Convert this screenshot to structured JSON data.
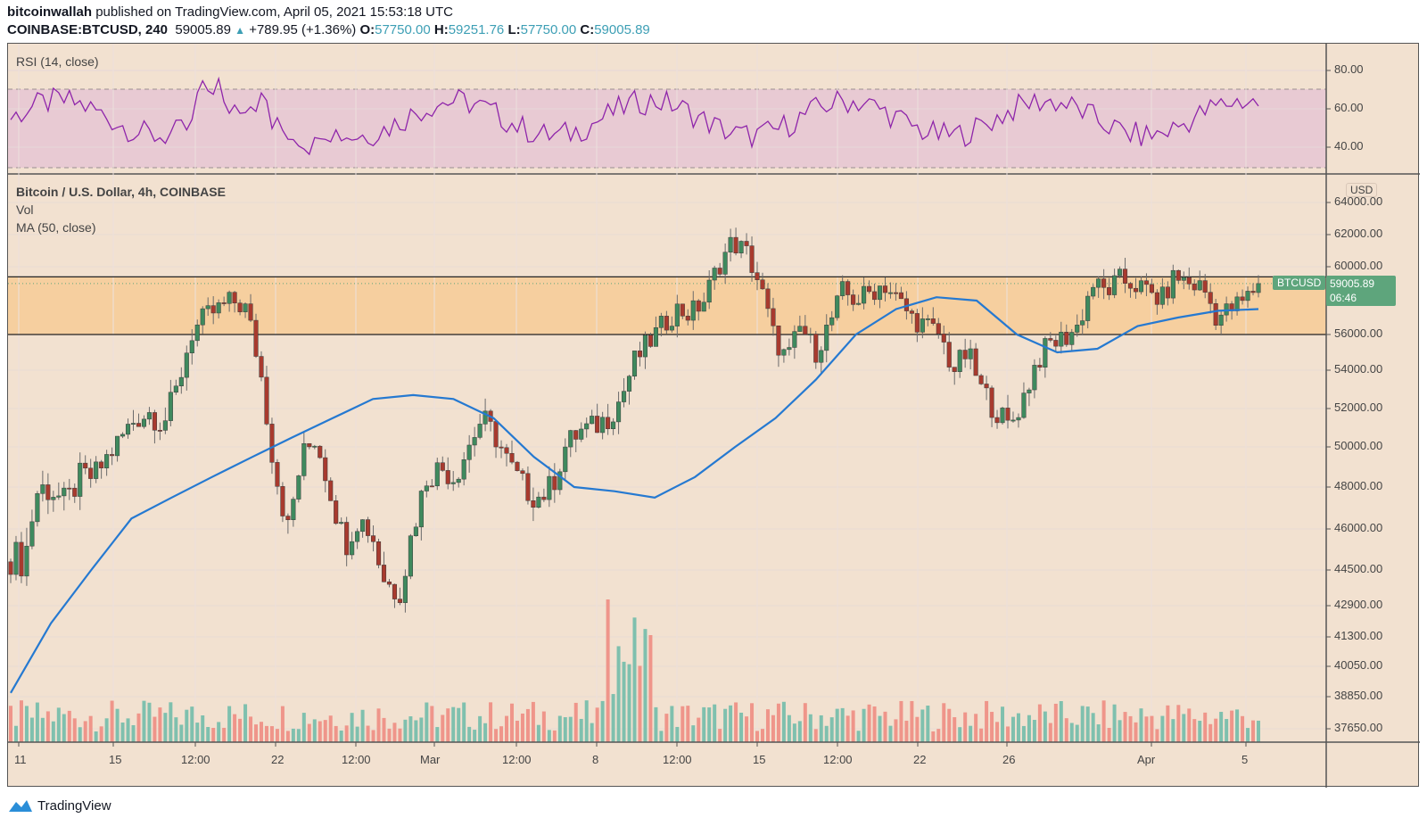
{
  "header": {
    "author": "bitcoinwallah",
    "published_text": "published on TradingView.com, April 05, 2021 15:53:18 UTC",
    "symbol_line": "COINBASE:BTCUSD, 240",
    "last_price": "59005.89",
    "change": "+789.95 (+1.36%)",
    "o_label": "O:",
    "o": "57750.00",
    "h_label": "H:",
    "h": "59251.76",
    "l_label": "L:",
    "l": "57750.00",
    "c_label": "C:",
    "c": "59005.89"
  },
  "rsi_pane": {
    "title": "RSI (14, close)",
    "y_ticks": [
      "80.00",
      "60.00",
      "40.00"
    ]
  },
  "main_pane": {
    "title": "Bitcoin / U.S. Dollar, 4h, COINBASE",
    "vol_label": "Vol",
    "ma_label": "MA (50, close)",
    "currency": "USD",
    "y_ticks": [
      "64000.00",
      "62000.00",
      "60000.00",
      "56000.00",
      "54000.00",
      "52000.00",
      "50000.00",
      "48000.00",
      "46000.00",
      "44500.00",
      "42900.00",
      "41300.00",
      "40050.00",
      "38850.00",
      "37650.00"
    ],
    "price_tag": {
      "symbol": "BTCUSD",
      "price": "59005.89",
      "countdown": "06:46"
    }
  },
  "x_axis": {
    "ticks": [
      "11",
      "15",
      "12:00",
      "22",
      "12:00",
      "Mar",
      "12:00",
      "8",
      "12:00",
      "15",
      "12:00",
      "22",
      "26",
      "Apr",
      "5"
    ]
  },
  "footer": {
    "brand": "TradingView"
  },
  "colors": {
    "up": "#3f8a5e",
    "down": "#a83a2e",
    "vol_up": "#7fc0ae",
    "vol_down": "#ef958a",
    "ma": "#2579d1",
    "rsi": "#8e24aa",
    "zone": "#f6cf9f",
    "bg": "#f2e1d0"
  },
  "chart_data": {
    "type": "candlestick",
    "title": "Bitcoin / U.S. Dollar, 4h, COINBASE",
    "xlabel": "",
    "ylabel": "USD",
    "x_ticks": [
      "11",
      "15",
      "12:00",
      "22",
      "12:00",
      "Mar",
      "12:00",
      "8",
      "12:00",
      "15",
      "12:00",
      "22",
      "26",
      "Apr",
      "5"
    ],
    "y_ticks": [
      64000,
      62000,
      60000,
      56000,
      54000,
      52000,
      50000,
      48000,
      46000,
      44500,
      42900,
      41300,
      40050,
      38850,
      37650
    ],
    "resistance_zone": [
      56000,
      59400
    ],
    "close_path_approx": [
      45000,
      44800,
      48000,
      47800,
      47200,
      48500,
      48500,
      49500,
      50500,
      51500,
      51800,
      51200,
      53000,
      56000,
      57000,
      57500,
      58000,
      57500,
      54000,
      49000,
      46000,
      49500,
      50500,
      48000,
      45500,
      46500,
      46000,
      44000,
      43500,
      46000,
      48500,
      49000,
      48500,
      50000,
      51500,
      50500,
      49000,
      48000,
      47500,
      48000,
      50000,
      50800,
      51000,
      51500,
      52500,
      54500,
      55500,
      56500,
      57500,
      57200,
      58000,
      60000,
      61500,
      61000,
      59000,
      56000,
      54500,
      56500,
      55000,
      56500,
      58500,
      58000,
      58500,
      59000,
      58000,
      57000,
      56500,
      56000,
      54000,
      55000,
      53000,
      52000,
      51000,
      52500,
      54500,
      55500,
      55800,
      56500,
      59000,
      58500,
      59200,
      59000,
      58500,
      58000,
      59500,
      59000,
      58800,
      57000,
      57500,
      58000,
      59005
    ],
    "ma50_approx": [
      39000,
      42000,
      44500,
      46500,
      47500,
      48500,
      49500,
      50500,
      51500,
      52500,
      52700,
      52500,
      51500,
      49500,
      48000,
      47800,
      47500,
      48500,
      50000,
      51500,
      53500,
      56000,
      57500,
      58200,
      58000,
      56000,
      55000,
      55200,
      56500,
      57000,
      57400,
      57500
    ],
    "rsi_range": [
      30,
      80
    ],
    "volume_note": "volume bars rendered in lower pane, scale not labeled"
  }
}
